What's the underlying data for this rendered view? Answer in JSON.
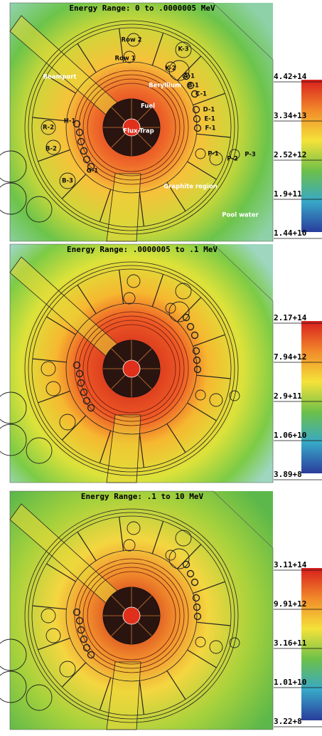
{
  "panels": [
    {
      "title": "Energy Range:  0 to .0000005 MeV",
      "colorbar": [
        "4.42+14",
        "3.34+13",
        "2.52+12",
        "1.9+11",
        "1.44+10"
      ],
      "labels": [
        "Row 2",
        "Row 1",
        "K-3",
        "K-2",
        "A-1",
        "B-1",
        "C-1",
        "D-1",
        "E-1",
        "F-1",
        "Beamport",
        "Beryllium",
        "Fuel",
        "Flux-Trap",
        "R-2",
        "H-1",
        "B-2",
        "B-3",
        "G-1",
        "P-1",
        "P-2",
        "P-3",
        "Graphite region",
        "Pool water"
      ]
    },
    {
      "title": "Energy Range:  .0000005 to .1 MeV",
      "colorbar": [
        "2.17+14",
        "7.94+12",
        "2.9+11",
        "1.06+10",
        "3.89+8"
      ]
    },
    {
      "title": "Energy Range:  .1 to 10 MeV",
      "colorbar": [
        "3.11+14",
        "9.91+12",
        "3.16+11",
        "1.01+10",
        "3.22+8"
      ]
    }
  ]
}
